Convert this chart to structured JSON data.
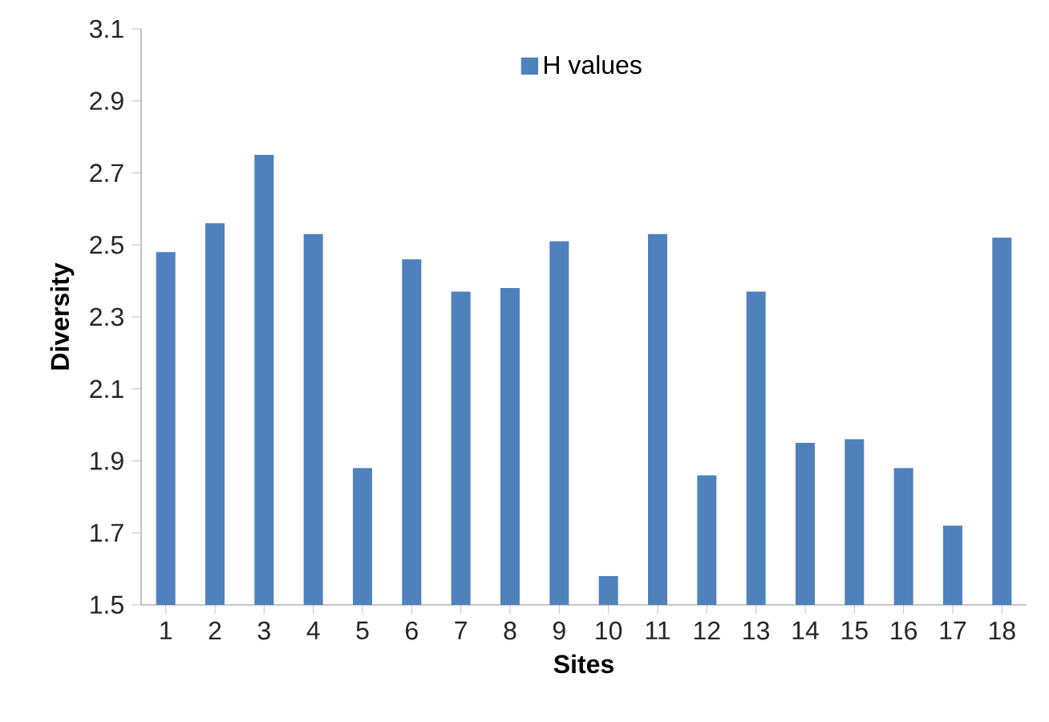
{
  "chart_data": {
    "type": "bar",
    "xlabel": "Sites",
    "ylabel": "Diversity",
    "categories": [
      "1",
      "2",
      "3",
      "4",
      "5",
      "6",
      "7",
      "8",
      "9",
      "10",
      "11",
      "12",
      "13",
      "14",
      "15",
      "16",
      "17",
      "18"
    ],
    "series": [
      {
        "name": "H values",
        "color": "#4f81bd",
        "values": [
          2.48,
          2.56,
          2.75,
          2.53,
          1.88,
          2.46,
          2.37,
          2.38,
          2.51,
          1.58,
          2.53,
          1.86,
          2.37,
          1.95,
          1.96,
          1.88,
          1.72,
          2.52
        ]
      }
    ],
    "ylim": [
      1.5,
      3.1
    ],
    "yticks": [
      1.5,
      1.7,
      1.9,
      2.1,
      2.3,
      2.5,
      2.7,
      2.9,
      3.1
    ],
    "legend": "top"
  }
}
